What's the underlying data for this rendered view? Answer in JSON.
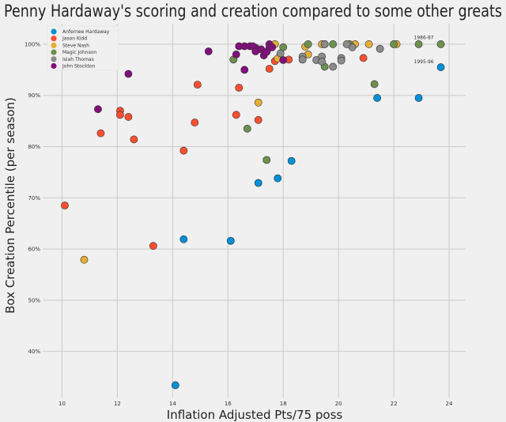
{
  "chart_data": {
    "type": "scatter",
    "title": "Penny Hardaway's scoring and creation compared to some other greats",
    "xlabel": "Inflation Adjusted Pts/75 poss",
    "ylabel": "Box Creation Percentile (per season)",
    "xlim": [
      9.3,
      24.6
    ],
    "ylim": [
      31,
      104
    ],
    "xticks": [
      "10",
      "12",
      "14",
      "16",
      "18",
      "20",
      "22",
      "24"
    ],
    "yticks": [
      "40%",
      "50%",
      "60%",
      "70%",
      "80%",
      "90%",
      "100%"
    ],
    "grid": true,
    "legend": "top-left",
    "annotations": [
      {
        "text": "1986-87",
        "x": 22.9,
        "y": 101
      },
      {
        "text": "1995-96",
        "x": 22.9,
        "y": 96.3
      }
    ],
    "series": [
      {
        "name": "Anfernee Hardaway",
        "color": "#008fd5",
        "points": [
          [
            23.7,
            95.5
          ],
          [
            21.4,
            89.5
          ],
          [
            22.9,
            89.5
          ],
          [
            18.3,
            77.2
          ],
          [
            17.8,
            73.8
          ],
          [
            17.1,
            72.9
          ],
          [
            14.4,
            61.9
          ],
          [
            16.1,
            61.6
          ],
          [
            14.1,
            33.4
          ]
        ]
      },
      {
        "name": "Jason Kidd",
        "color": "#fc4f30",
        "points": [
          [
            10.1,
            68.5
          ],
          [
            11.4,
            82.6
          ],
          [
            12.1,
            87.0
          ],
          [
            12.1,
            86.2
          ],
          [
            12.4,
            85.8
          ],
          [
            12.6,
            81.4
          ],
          [
            13.3,
            60.6
          ],
          [
            14.4,
            79.2
          ],
          [
            14.8,
            84.7
          ],
          [
            14.9,
            92.1
          ],
          [
            16.3,
            86.2
          ],
          [
            16.4,
            91.5
          ],
          [
            17.1,
            85.2
          ],
          [
            17.5,
            95.2
          ],
          [
            17.7,
            96.7
          ],
          [
            18.2,
            97.0
          ],
          [
            20.9,
            97.3
          ]
        ]
      },
      {
        "name": "Steve Nash",
        "color": "#e5ae38",
        "points": [
          [
            10.8,
            57.9
          ],
          [
            17.1,
            88.6
          ],
          [
            17.7,
            100
          ],
          [
            17.8,
            97.2
          ],
          [
            18.8,
            99.5
          ],
          [
            18.9,
            98.0
          ],
          [
            19.4,
            100
          ],
          [
            19.5,
            100
          ],
          [
            20.6,
            100
          ],
          [
            21.1,
            100
          ],
          [
            22.1,
            100
          ]
        ]
      },
      {
        "name": "Magic Johnson",
        "color": "#6d904f",
        "points": [
          [
            16.2,
            97.0
          ],
          [
            16.7,
            83.5
          ],
          [
            17.4,
            77.4
          ],
          [
            18.0,
            99.4
          ],
          [
            18.9,
            100
          ],
          [
            19.8,
            100
          ],
          [
            19.5,
            95.6
          ],
          [
            20.4,
            100
          ],
          [
            21.3,
            92.2
          ],
          [
            22.0,
            100
          ],
          [
            22.9,
            100
          ],
          [
            23.7,
            100
          ]
        ]
      },
      {
        "name": "Isiah Thomas",
        "color": "#8b8b8b",
        "points": [
          [
            17.9,
            98.2
          ],
          [
            18.7,
            97.6
          ],
          [
            18.7,
            97.0
          ],
          [
            19.2,
            96.9
          ],
          [
            19.4,
            97.6
          ],
          [
            19.4,
            96.6
          ],
          [
            19.8,
            95.6
          ],
          [
            20.1,
            97.3
          ],
          [
            20.1,
            96.8
          ],
          [
            20.5,
            99.4
          ],
          [
            21.5,
            99.1
          ],
          [
            20.3,
            100
          ],
          [
            19.5,
            100
          ]
        ]
      },
      {
        "name": "John Stockton",
        "color": "#810f7c",
        "points": [
          [
            11.3,
            87.3
          ],
          [
            12.4,
            94.2
          ],
          [
            15.3,
            98.6
          ],
          [
            16.4,
            99.6
          ],
          [
            16.6,
            99.6
          ],
          [
            16.3,
            98.0
          ],
          [
            16.6,
            95.0
          ],
          [
            16.8,
            99.6
          ],
          [
            17.0,
            99.3
          ],
          [
            16.9,
            99.6
          ],
          [
            17.2,
            99.0
          ],
          [
            17.3,
            97.8
          ],
          [
            17.5,
            100
          ],
          [
            17.5,
            99.3
          ],
          [
            17.6,
            99.4
          ],
          [
            18.0,
            96.9
          ],
          [
            17.4,
            98.5
          ],
          [
            17.0,
            98.6
          ]
        ]
      }
    ]
  }
}
